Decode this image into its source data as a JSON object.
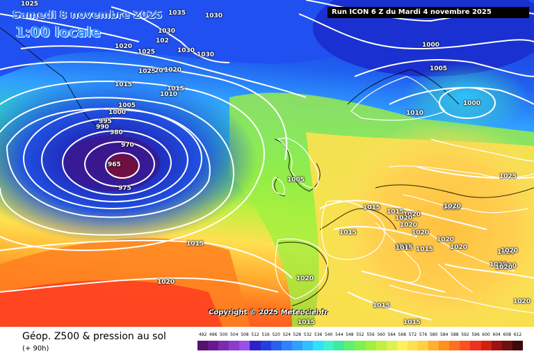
{
  "title": {
    "date": "Samedi 8 novembre 2025",
    "local_time": "1:00 locale",
    "run_info": "Run ICON 6 Z du Mardi 4 novembre 2025"
  },
  "copyright": "Copyright © 2025 Meteociel.fr",
  "legend": {
    "title": "Géop. Z500 & pression au sol",
    "subtitle": "(+ 90h)",
    "scale_values": [
      "492",
      "496",
      "500",
      "504",
      "508",
      "512",
      "516",
      "520",
      "524",
      "528",
      "532",
      "536",
      "540",
      "544",
      "548",
      "552",
      "556",
      "560",
      "564",
      "568",
      "572",
      "576",
      "580",
      "584",
      "588",
      "592",
      "596",
      "600",
      "604",
      "608",
      "612"
    ],
    "scale_colors": [
      "#5a1070",
      "#6a1890",
      "#7a2cb0",
      "#8a3ed0",
      "#9a50e8",
      "#3020c8",
      "#2040e0",
      "#2860f0",
      "#3080ff",
      "#30a0ff",
      "#30c0ff",
      "#30e0ff",
      "#40f0d0",
      "#40e8a0",
      "#60f070",
      "#80f050",
      "#a0f040",
      "#c0f040",
      "#e0f050",
      "#fff060",
      "#ffe050",
      "#ffd040",
      "#ffb030",
      "#ff9020",
      "#ff7020",
      "#ff5020",
      "#f03020",
      "#d02010",
      "#a01010",
      "#701010",
      "#400808"
    ]
  },
  "isobars": [
    {
      "label": "1025"
    },
    {
      "label": "1035"
    },
    {
      "label": "1030"
    },
    {
      "label": "1030"
    },
    {
      "label": "102"
    },
    {
      "label": "1030"
    },
    {
      "label": "1030"
    },
    {
      "label": "1020"
    },
    {
      "label": "1025"
    },
    {
      "label": "1025"
    },
    {
      "label": "20"
    },
    {
      "label": "1020"
    },
    {
      "label": "1015"
    },
    {
      "label": "1010"
    },
    {
      "label": "1015"
    },
    {
      "label": "1005"
    },
    {
      "label": "1000"
    },
    {
      "label": "995"
    },
    {
      "label": "990"
    },
    {
      "label": "980"
    },
    {
      "label": "970"
    },
    {
      "label": "965"
    },
    {
      "label": "975"
    },
    {
      "label": "1000"
    },
    {
      "label": "1005"
    },
    {
      "label": "1000"
    },
    {
      "label": "1010"
    },
    {
      "label": "1005"
    },
    {
      "label": "1015"
    },
    {
      "label": "1015"
    },
    {
      "label": "1020"
    },
    {
      "label": "1020"
    },
    {
      "label": "1020"
    },
    {
      "label": "1015"
    },
    {
      "label": "1020"
    },
    {
      "label": "1020"
    },
    {
      "label": "1020"
    },
    {
      "label": "1015"
    },
    {
      "label": "1015"
    },
    {
      "label": "1020"
    },
    {
      "label": "1020"
    },
    {
      "label": "1015"
    },
    {
      "label": "1020"
    },
    {
      "label": "1020"
    },
    {
      "label": "1025"
    },
    {
      "label": "1020"
    },
    {
      "label": "1015"
    },
    {
      "label": "1015"
    },
    {
      "label": "1020"
    },
    {
      "label": "1015"
    },
    {
      "label": "1015"
    },
    {
      "label": "1020"
    },
    {
      "label": "1020"
    },
    {
      "label": "1020"
    },
    {
      "label": "1020"
    }
  ]
}
